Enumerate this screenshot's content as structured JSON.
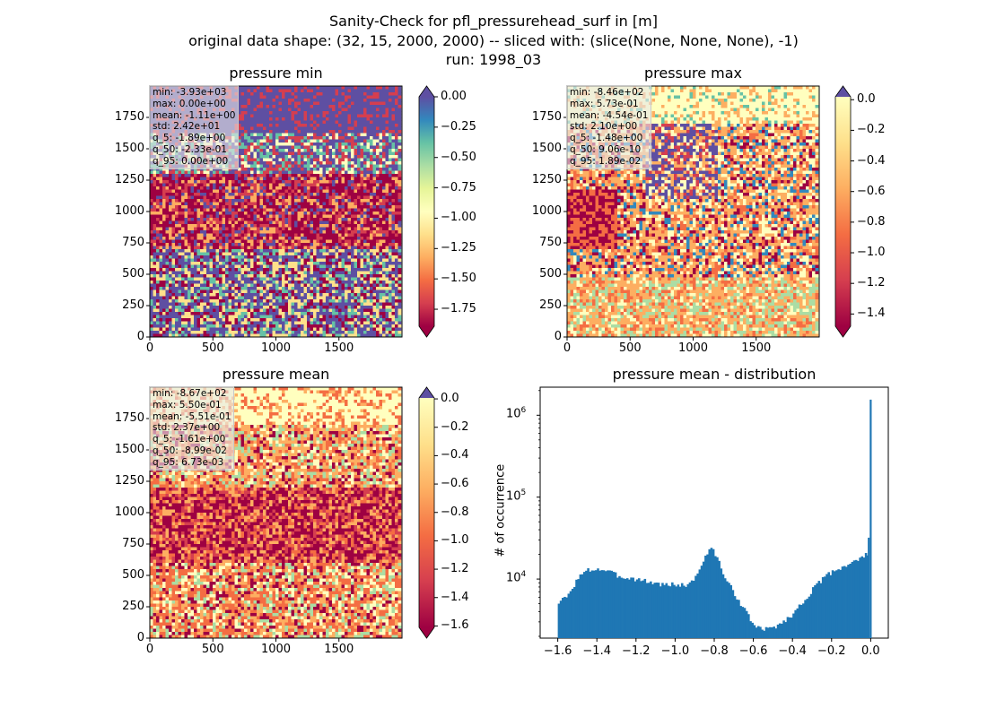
{
  "suptitle": {
    "line1": "Sanity-Check for pfl_pressurehead_surf in [m]",
    "line2": "original data shape: (32, 15, 2000, 2000) -- sliced with: (slice(None, None, None), -1)",
    "line3": "run: 1998_03"
  },
  "colors": {
    "spectral": [
      "#9e0142",
      "#d53e4f",
      "#f46d43",
      "#fdae61",
      "#fee08b",
      "#ffffbf",
      "#e6f598",
      "#abdda4",
      "#66c2a5",
      "#3288bd",
      "#5e4fa2"
    ],
    "hist_bar": "#1f77b4"
  },
  "panels": {
    "min": {
      "title": "pressure min",
      "stats": [
        "min: -3.93e+03",
        "max: 0.00e+00",
        "mean: -1.11e+00",
        "std: 2.42e+01",
        "q_5: -1.89e+00",
        "q_50: -2.33e-01",
        "q_95: 0.00e+00"
      ],
      "colorbar_ticks": [
        "0.00",
        "−0.25",
        "−0.50",
        "−0.75",
        "−1.00",
        "−1.25",
        "−1.50",
        "−1.75"
      ],
      "extend": "both"
    },
    "max": {
      "title": "pressure max",
      "stats": [
        "min: -8.46e+02",
        "max: 5.73e-01",
        "mean: -4.54e-01",
        "std: 2.10e+00",
        "q_5: -1.48e+00",
        "q_50: 9.06e-10",
        "q_95: 1.89e-02"
      ],
      "colorbar_ticks": [
        "0.0",
        "−0.2",
        "−0.4",
        "−0.6",
        "−0.8",
        "−1.0",
        "−1.2",
        "−1.4"
      ],
      "extend": "both"
    },
    "mean": {
      "title": "pressure mean",
      "stats": [
        "min: -8.67e+02",
        "max: 5.50e-01",
        "mean: -5.51e-01",
        "std: 2.37e+00",
        "q_5: -1.61e+00",
        "q_50: -8.99e-02",
        "q_95: 6.73e-03"
      ],
      "colorbar_ticks": [
        "0.0",
        "−0.2",
        "−0.4",
        "−0.6",
        "−0.8",
        "−1.0",
        "−1.2",
        "−1.4",
        "−1.6"
      ],
      "extend": "both"
    },
    "hist": {
      "title": "pressure mean - distribution",
      "ylabel": "# of occurrence"
    }
  },
  "map_axes": {
    "x_ticks": [
      "0",
      "500",
      "1000",
      "1500"
    ],
    "y_ticks": [
      "0",
      "250",
      "500",
      "750",
      "1000",
      "1250",
      "1500",
      "1750"
    ]
  },
  "chart_data": [
    {
      "type": "heatmap",
      "title": "pressure min",
      "xlim": [
        0,
        2000
      ],
      "ylim": [
        0,
        2000
      ],
      "x_ticks": [
        0,
        500,
        1000,
        1500
      ],
      "y_ticks": [
        0,
        250,
        500,
        750,
        1000,
        1250,
        1500,
        1750
      ],
      "colorbar": {
        "vmin": -1.89,
        "vmax": 0.0,
        "colormap": "Spectral",
        "ticks": [
          0.0,
          -0.25,
          -0.5,
          -0.75,
          -1.0,
          -1.25,
          -1.5,
          -1.75
        ]
      }
    },
    {
      "type": "heatmap",
      "title": "pressure max",
      "xlim": [
        0,
        2000
      ],
      "ylim": [
        0,
        2000
      ],
      "x_ticks": [
        0,
        500,
        1000,
        1500
      ],
      "y_ticks": [
        0,
        250,
        500,
        750,
        1000,
        1250,
        1500,
        1750
      ],
      "colorbar": {
        "vmin": -1.48,
        "vmax": 0.019,
        "colormap": "Spectral",
        "ticks": [
          0.0,
          -0.2,
          -0.4,
          -0.6,
          -0.8,
          -1.0,
          -1.2,
          -1.4
        ]
      }
    },
    {
      "type": "heatmap",
      "title": "pressure mean",
      "xlim": [
        0,
        2000
      ],
      "ylim": [
        0,
        2000
      ],
      "x_ticks": [
        0,
        500,
        1000,
        1500
      ],
      "y_ticks": [
        0,
        250,
        500,
        750,
        1000,
        1250,
        1500,
        1750
      ],
      "colorbar": {
        "vmin": -1.61,
        "vmax": 0.0067,
        "colormap": "Spectral",
        "ticks": [
          0.0,
          -0.2,
          -0.4,
          -0.6,
          -0.8,
          -1.0,
          -1.2,
          -1.4,
          -1.6
        ]
      }
    },
    {
      "type": "bar",
      "title": "pressure mean - distribution",
      "xlabel": "",
      "ylabel": "# of occurrence",
      "yscale": "log",
      "xlim": [
        -1.69,
        0.09
      ],
      "ylim": [
        1900,
        2200000
      ],
      "x_ticks": [
        -1.6,
        -1.4,
        -1.2,
        -1.0,
        -0.8,
        -0.6,
        -0.4,
        -0.2,
        0.0
      ],
      "x_tick_labels": [
        "−1.6",
        "−1.4",
        "−1.2",
        "−1.0",
        "−0.8",
        "−0.6",
        "−0.4",
        "−0.2",
        "0.0"
      ],
      "y_ticks": [
        10000,
        100000,
        1000000
      ],
      "y_tick_labels": [
        "10^4",
        "10^5",
        "10^6"
      ],
      "bin_width": 0.01,
      "x": [
        -1.6,
        -1.55,
        -1.5,
        -1.45,
        -1.4,
        -1.35,
        -1.3,
        -1.25,
        -1.2,
        -1.15,
        -1.1,
        -1.05,
        -1.0,
        -0.95,
        -0.9,
        -0.87,
        -0.85,
        -0.83,
        -0.81,
        -0.8,
        -0.78,
        -0.75,
        -0.7,
        -0.65,
        -0.6,
        -0.58,
        -0.55,
        -0.5,
        -0.45,
        -0.4,
        -0.35,
        -0.3,
        -0.25,
        -0.2,
        -0.15,
        -0.1,
        -0.05,
        -0.02,
        -0.01,
        0.0
      ],
      "values": [
        5200,
        6300,
        10500,
        12800,
        13300,
        12600,
        11000,
        10400,
        10000,
        9400,
        8800,
        8500,
        8600,
        8300,
        10500,
        15000,
        19000,
        22000,
        23500,
        20000,
        16000,
        10300,
        6600,
        4200,
        2700,
        2550,
        2400,
        2600,
        3000,
        3800,
        5300,
        7500,
        10000,
        12500,
        14000,
        16000,
        18000,
        20500,
        32000,
        1550000
      ]
    }
  ]
}
